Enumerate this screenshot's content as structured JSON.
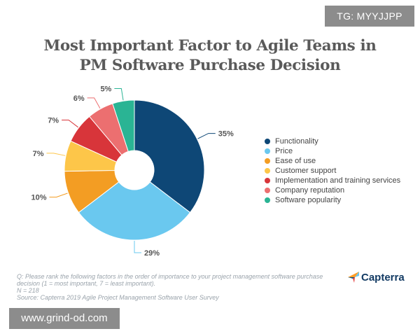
{
  "badge": {
    "text": "TG: MYYJJPP"
  },
  "title": {
    "line1": "Most Important Factor to Agile Teams in",
    "line2": "PM Software Purchase Decision"
  },
  "chart_data": {
    "type": "pie",
    "donut": true,
    "categories": [
      "Functionality",
      "Price",
      "Ease of use",
      "Customer support",
      "Implementation and training services",
      "Company reputation",
      "Software popularity"
    ],
    "values": [
      35,
      29,
      10,
      7,
      7,
      6,
      5
    ],
    "value_labels": [
      "35%",
      "29%",
      "10%",
      "7%",
      "7%",
      "6%",
      "5%"
    ],
    "colors": [
      "#0e4776",
      "#6ac8ef",
      "#f39d23",
      "#fdc649",
      "#d8353a",
      "#ec6f70",
      "#2ab494"
    ],
    "legend_position": "right"
  },
  "footnote": {
    "line1": "Q: Please rank the following factors in the order of importance to your project management software purchase",
    "line2": "decision (1 = most important, 7 = least important).",
    "line3": "N = 218",
    "line4": "Source: Capterra 2019 Agile Project Management Software User Survey"
  },
  "brand": {
    "name": "Capterra"
  },
  "watermark": {
    "text": "www.grind-od.com"
  }
}
